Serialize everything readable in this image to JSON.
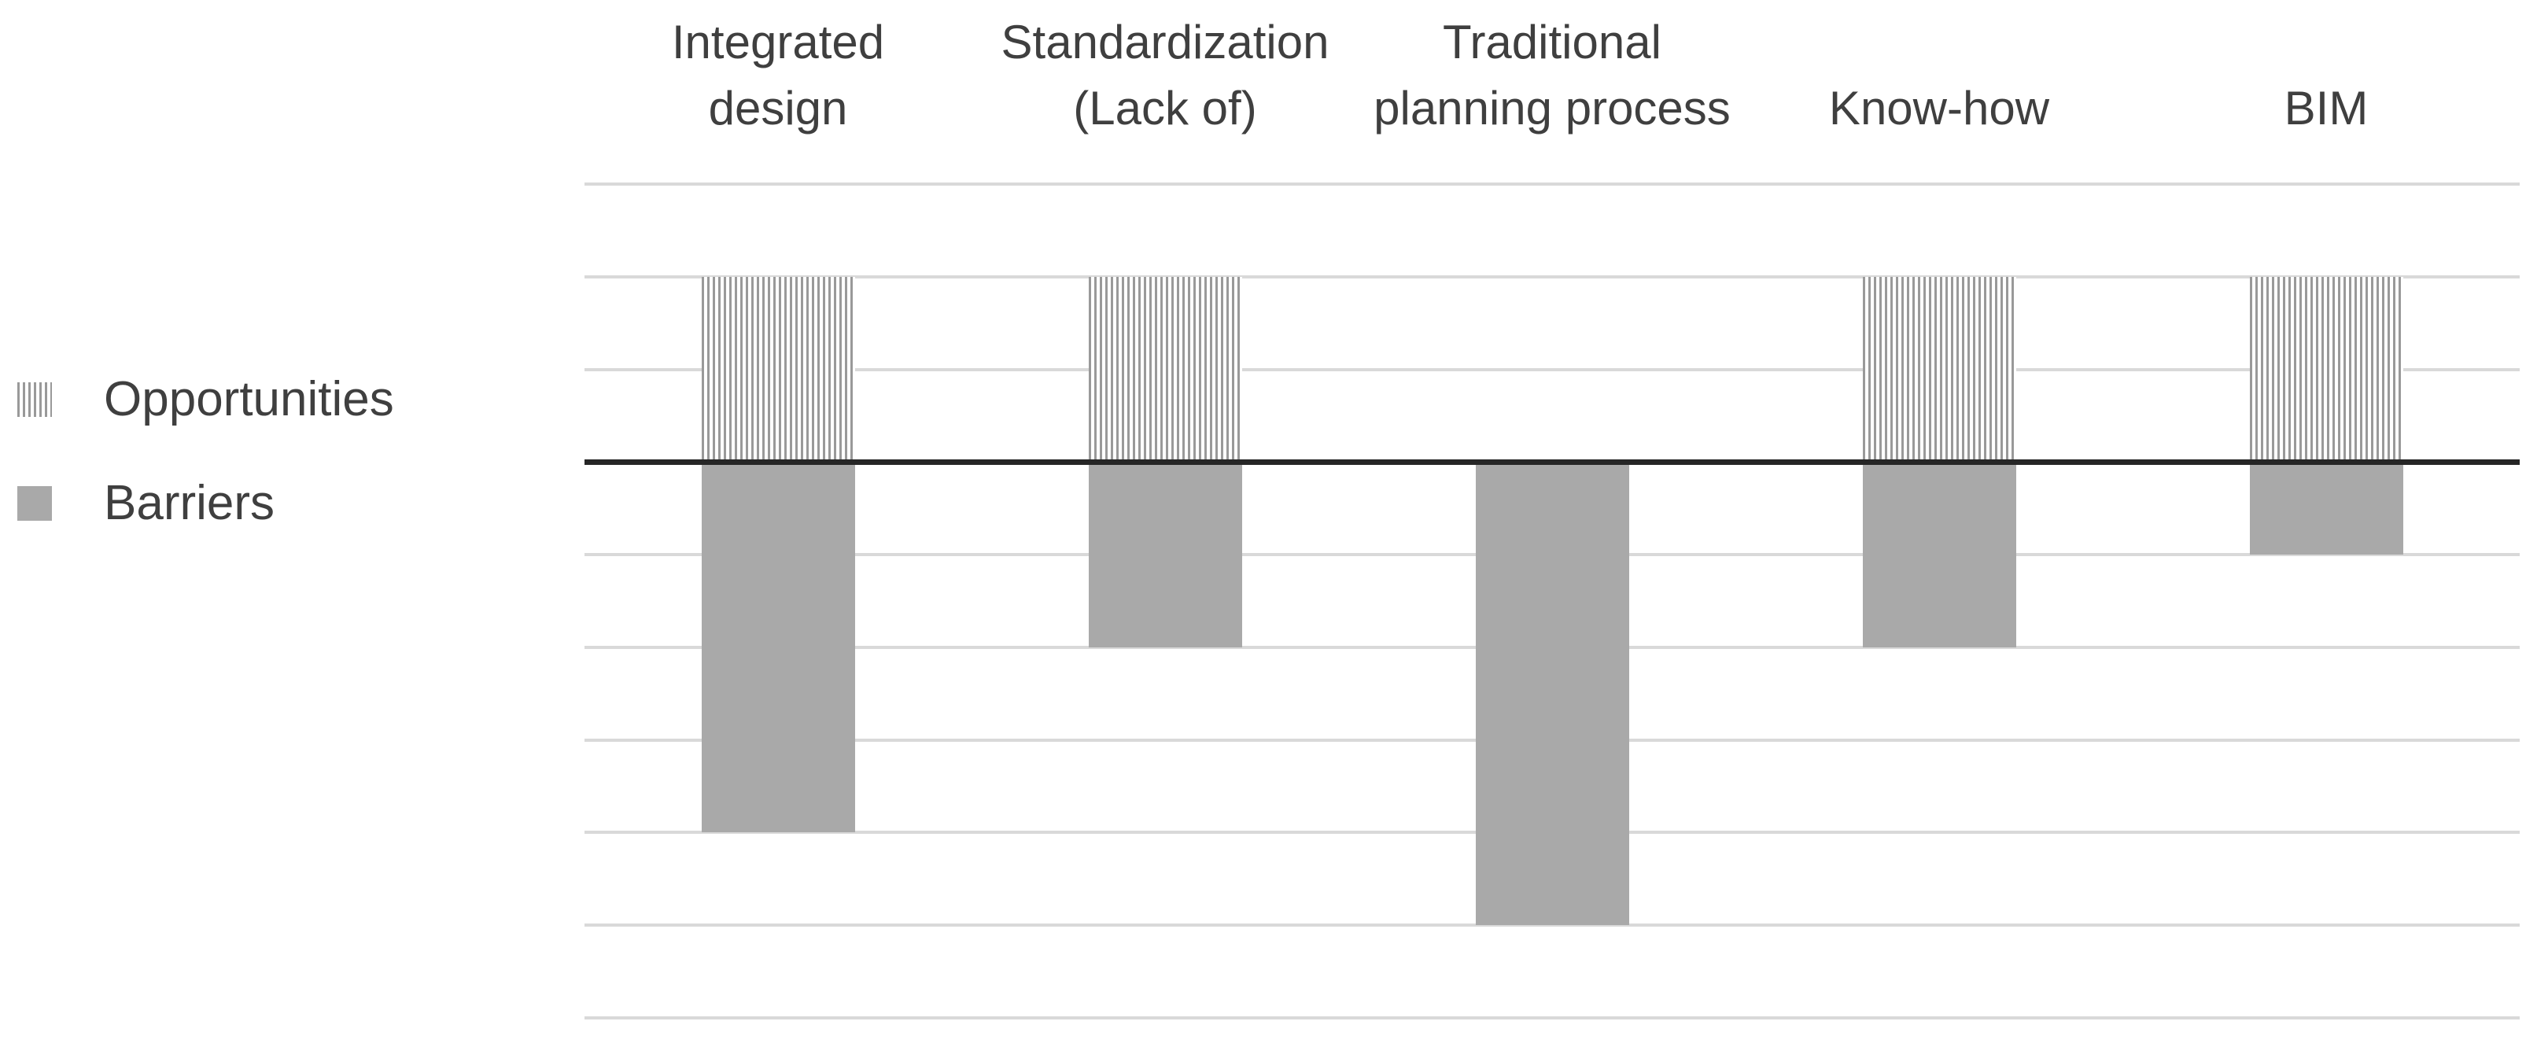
{
  "chart_data": {
    "type": "bar",
    "subtype": "diverging-vertical",
    "title": "",
    "xlabel": "",
    "ylabel": "",
    "categories": [
      "Integrated design",
      "Standardization (Lack of)",
      "Traditional planning process",
      "Know-how",
      "BIM"
    ],
    "category_lines": [
      [
        "Integrated",
        "design"
      ],
      [
        "Standardization",
        "(Lack of)"
      ],
      [
        "Traditional",
        "planning process"
      ],
      [
        "Know-how"
      ],
      [
        "BIM"
      ]
    ],
    "series": [
      {
        "name": "Opportunities",
        "style": "striped",
        "values": [
          2,
          2,
          0,
          2,
          2
        ]
      },
      {
        "name": "Barriers",
        "style": "solid",
        "values": [
          -4,
          -2,
          -5,
          -2,
          -1
        ]
      }
    ],
    "ylim": [
      -6,
      3
    ],
    "gridline_step": 1,
    "grid": "horizontal",
    "y_tick_labels_shown": false,
    "zero_axis_emphasized": true,
    "legend_position": "left"
  },
  "legend": {
    "items": [
      {
        "label": "Opportunities",
        "swatch": "striped"
      },
      {
        "label": "Barriers",
        "swatch": "solid"
      }
    ]
  },
  "colors": {
    "background": "#ffffff",
    "bar_solid": "#a9a9a9",
    "stripe_line": "#999999",
    "gridline": "#d9d9d9",
    "zero_line": "#262626",
    "text": "#3f3f3f"
  }
}
